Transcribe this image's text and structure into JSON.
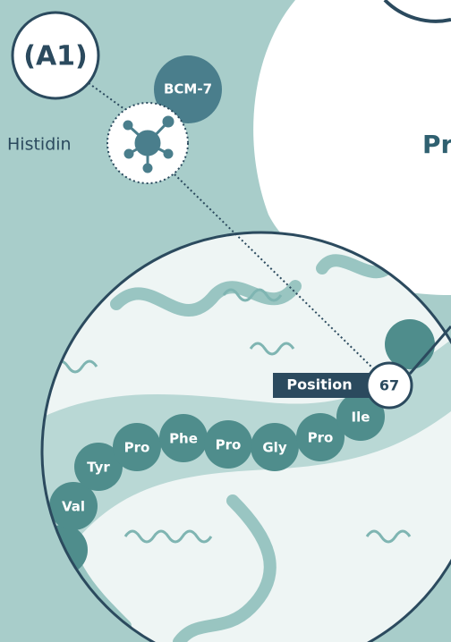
{
  "badge": "(A1)",
  "peptide": "BCM-7",
  "residue": "Histidin",
  "heading_fragment": "Pr",
  "position_label": "Position",
  "position_number": "67",
  "amino_acids": [
    "Val",
    "Tyr",
    "Pro",
    "Phe",
    "Pro",
    "Gly",
    "Pro",
    "Ile"
  ]
}
